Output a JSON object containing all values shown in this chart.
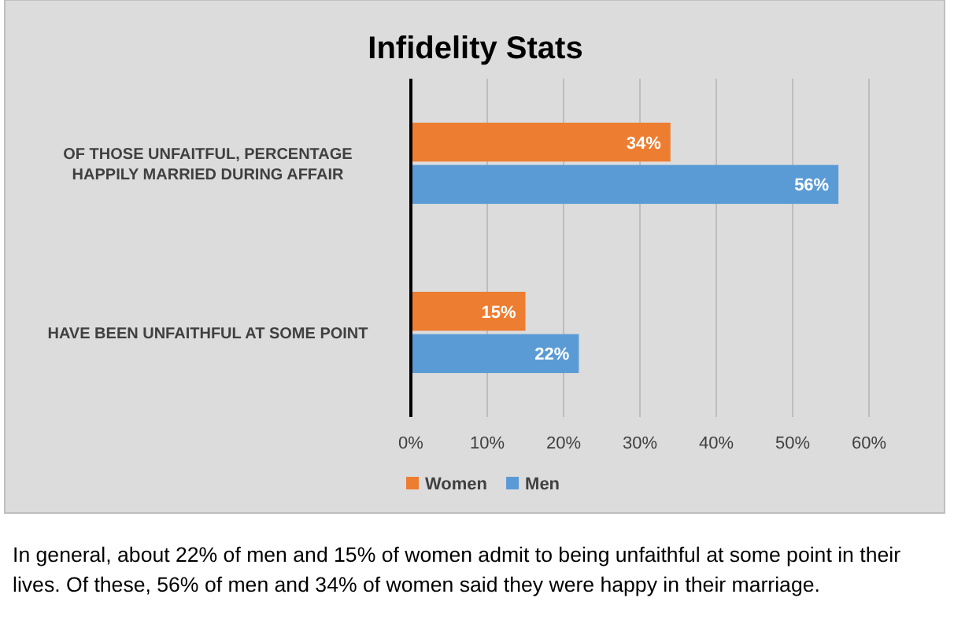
{
  "chart_data": {
    "type": "bar",
    "orientation": "horizontal",
    "title": "Infidelity Stats",
    "categories": [
      "OF THOSE UNFAITFUL, PERCENTAGE HAPPILY MARRIED DURING AFFAIR",
      "HAVE BEEN UNFAITHFUL AT SOME POINT"
    ],
    "series": [
      {
        "name": "Women",
        "color": "#ed7d31",
        "values": [
          34,
          15
        ],
        "value_labels": [
          "34%",
          "15%"
        ]
      },
      {
        "name": "Men",
        "color": "#5b9bd5",
        "values": [
          56,
          22
        ],
        "value_labels": [
          "56%",
          "22%"
        ]
      }
    ],
    "xlim": [
      0,
      60
    ],
    "xticks": [
      {
        "value": 0,
        "label": "0%"
      },
      {
        "value": 10,
        "label": "10%"
      },
      {
        "value": 20,
        "label": "20%"
      },
      {
        "value": 30,
        "label": "30%"
      },
      {
        "value": 40,
        "label": "40%"
      },
      {
        "value": 50,
        "label": "50%"
      },
      {
        "value": 60,
        "label": "60%"
      }
    ],
    "grid": "x",
    "legend": "bottom",
    "annotations": [
      "In general, about 22% of men and 15% of women admit to being unfaithful at some point in their lives. Of these, 56% of men and 34% of women said they were happy in their marriage."
    ]
  }
}
